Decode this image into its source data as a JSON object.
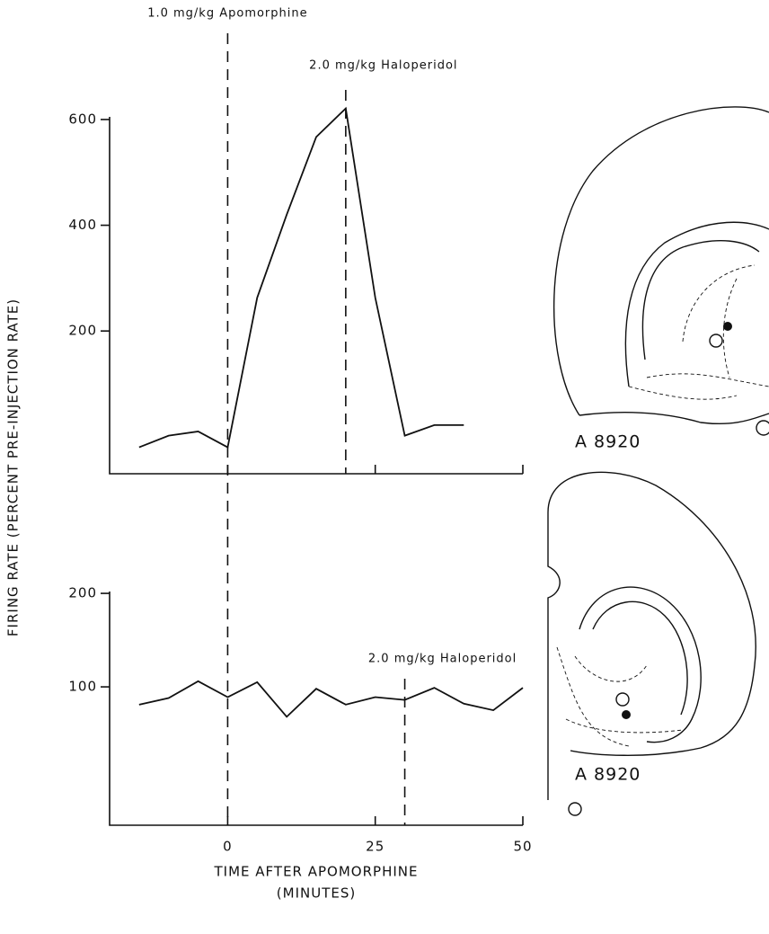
{
  "chart_data": [
    {
      "type": "line",
      "ylabel": "FIRING RATE (PERCENT PRE-INJECTION RATE)",
      "x": [
        -15,
        -10,
        -5,
        0,
        5,
        10,
        15,
        20,
        25,
        30,
        35,
        40
      ],
      "series": [
        {
          "color": "#111111",
          "values": [
            -20,
            2,
            10,
            -20,
            263,
            420,
            567,
            621,
            263,
            2,
            22,
            22
          ]
        }
      ],
      "xlim": [
        -20,
        50
      ],
      "xticks": [
        0,
        25,
        50
      ],
      "ylim": [
        -70,
        605
      ],
      "yticks": [
        200,
        400,
        600
      ],
      "annotations": [
        {
          "text": "1.0 mg/kg Apomorphine",
          "x": 0
        },
        {
          "text": "2.0 mg/kg Haloperidol",
          "x": 20
        }
      ]
    },
    {
      "type": "line",
      "xlabel": "TIME AFTER APOMORPHINE",
      "xlabel_unit": "(MINUTES)",
      "x": [
        -15,
        -10,
        -5,
        0,
        5,
        10,
        15,
        20,
        25,
        30,
        35,
        40,
        45,
        50
      ],
      "series": [
        {
          "color": "#111111",
          "values": [
            81,
            88,
            106,
            89,
            105,
            68,
            98,
            81,
            89,
            86,
            99,
            82,
            75,
            99
          ]
        }
      ],
      "xlim": [
        -20,
        50
      ],
      "xticks": [
        0,
        25,
        50
      ],
      "ylim": [
        -48,
        202
      ],
      "yticks": [
        100,
        200
      ],
      "annotations": [
        {
          "text": "2.0 mg/kg Haloperidol",
          "x": 30
        }
      ]
    }
  ],
  "sections": [
    "A 8920",
    "A 8920"
  ]
}
